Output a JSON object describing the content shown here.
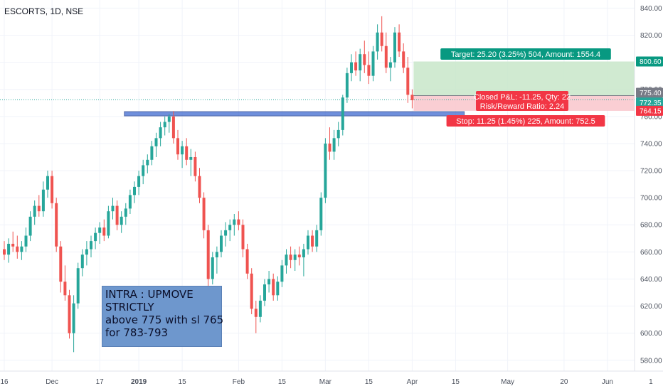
{
  "header": {
    "symbol_title": "ESCORTS, 1D, NSE"
  },
  "annotation": {
    "lines": [
      "INTRA : UPMOVE",
      "STRICTLY",
      "above 775 with sl 765",
      "for 783-793"
    ]
  },
  "position_tool": {
    "target_label": "Target: 25.20 (3.25%) 504, Amount: 1554.4",
    "closed_pnl_label": "Closed P&L: -11.25, Qty: 22",
    "risk_reward_label": "Risk/Reward Ratio: 2.24",
    "stop_label": "Stop: 11.25 (1.45%) 225, Amount: 752.5",
    "target_price": 800.6,
    "entry_price": 775.4,
    "stop_price": 764.15,
    "colors": {
      "target_zone": "#c8e6c9",
      "stop_zone": "#f9c9ce",
      "target_badge": "#089981",
      "stop_badge": "#f23645"
    }
  },
  "price_badges": [
    {
      "label": "800.60",
      "bg": "#089981",
      "fg": "#ffffff"
    },
    {
      "label": "775.40",
      "bg": "#787b86",
      "fg": "#ffffff"
    },
    {
      "label": "772.35",
      "bg": "#26a69a",
      "fg": "#ffffff"
    },
    {
      "label": "764.15",
      "bg": "#f23645",
      "fg": "#ffffff"
    }
  ],
  "chart_data": {
    "type": "candlestick",
    "title": "ESCORTS, 1D, NSE",
    "xlabel": "",
    "ylabel": "",
    "ylim": [
      572,
      846
    ],
    "y_ticks": [
      580,
      600,
      620,
      640,
      660,
      680,
      700,
      720,
      740,
      760,
      780,
      800,
      820,
      840
    ],
    "x_ticks": [
      {
        "label": "16",
        "bar": 0
      },
      {
        "label": "Dec",
        "bar": 11
      },
      {
        "label": "17",
        "bar": 22
      },
      {
        "label": "2019",
        "bar": 31
      },
      {
        "label": "15",
        "bar": 41
      },
      {
        "label": "Feb",
        "bar": 54
      },
      {
        "label": "15",
        "bar": 64
      },
      {
        "label": "Mar",
        "bar": 74
      },
      {
        "label": "15",
        "bar": 84
      },
      {
        "label": "Apr",
        "bar": 94
      },
      {
        "label": "15",
        "bar": 104
      },
      {
        "label": "May",
        "bar": 116
      },
      {
        "label": "20",
        "bar": 129
      },
      {
        "label": "Jun",
        "bar": 139
      },
      {
        "label": "1",
        "bar": 149
      }
    ],
    "colors": {
      "up": "#26a69a",
      "down": "#ef5350"
    },
    "horizontal_levels": [
      {
        "value": 772.35,
        "style": "dotted",
        "color": "#26a69a"
      },
      {
        "value": 762,
        "style": "band",
        "color": "#3f6ad1",
        "from_bar": 28,
        "to_bar": 106
      }
    ],
    "candles": [
      {
        "o": 662,
        "h": 668,
        "l": 654,
        "c": 658
      },
      {
        "o": 658,
        "h": 670,
        "l": 652,
        "c": 666
      },
      {
        "o": 666,
        "h": 675,
        "l": 660,
        "c": 664
      },
      {
        "o": 664,
        "h": 672,
        "l": 655,
        "c": 660
      },
      {
        "o": 660,
        "h": 668,
        "l": 654,
        "c": 664
      },
      {
        "o": 664,
        "h": 678,
        "l": 660,
        "c": 672
      },
      {
        "o": 672,
        "h": 690,
        "l": 668,
        "c": 686
      },
      {
        "o": 686,
        "h": 698,
        "l": 680,
        "c": 694
      },
      {
        "o": 694,
        "h": 702,
        "l": 686,
        "c": 690
      },
      {
        "o": 690,
        "h": 712,
        "l": 686,
        "c": 706
      },
      {
        "o": 706,
        "h": 720,
        "l": 700,
        "c": 716
      },
      {
        "o": 716,
        "h": 720,
        "l": 692,
        "c": 696
      },
      {
        "o": 696,
        "h": 700,
        "l": 660,
        "c": 664
      },
      {
        "o": 664,
        "h": 668,
        "l": 630,
        "c": 638
      },
      {
        "o": 638,
        "h": 650,
        "l": 624,
        "c": 628
      },
      {
        "o": 628,
        "h": 632,
        "l": 596,
        "c": 600
      },
      {
        "o": 600,
        "h": 628,
        "l": 586,
        "c": 622
      },
      {
        "o": 622,
        "h": 652,
        "l": 618,
        "c": 648
      },
      {
        "o": 648,
        "h": 662,
        "l": 642,
        "c": 658
      },
      {
        "o": 658,
        "h": 668,
        "l": 650,
        "c": 662
      },
      {
        "o": 662,
        "h": 672,
        "l": 656,
        "c": 668
      },
      {
        "o": 668,
        "h": 678,
        "l": 662,
        "c": 674
      },
      {
        "o": 674,
        "h": 682,
        "l": 666,
        "c": 678
      },
      {
        "o": 678,
        "h": 684,
        "l": 668,
        "c": 672
      },
      {
        "o": 672,
        "h": 694,
        "l": 670,
        "c": 690
      },
      {
        "o": 690,
        "h": 700,
        "l": 684,
        "c": 694
      },
      {
        "o": 694,
        "h": 698,
        "l": 676,
        "c": 680
      },
      {
        "o": 680,
        "h": 690,
        "l": 674,
        "c": 686
      },
      {
        "o": 686,
        "h": 696,
        "l": 680,
        "c": 692
      },
      {
        "o": 692,
        "h": 706,
        "l": 688,
        "c": 702
      },
      {
        "o": 702,
        "h": 712,
        "l": 696,
        "c": 708
      },
      {
        "o": 708,
        "h": 720,
        "l": 702,
        "c": 716
      },
      {
        "o": 716,
        "h": 728,
        "l": 710,
        "c": 724
      },
      {
        "o": 724,
        "h": 732,
        "l": 718,
        "c": 728
      },
      {
        "o": 728,
        "h": 742,
        "l": 724,
        "c": 738
      },
      {
        "o": 738,
        "h": 748,
        "l": 730,
        "c": 744
      },
      {
        "o": 744,
        "h": 756,
        "l": 738,
        "c": 752
      },
      {
        "o": 752,
        "h": 760,
        "l": 746,
        "c": 756
      },
      {
        "o": 756,
        "h": 762,
        "l": 748,
        "c": 760
      },
      {
        "o": 760,
        "h": 764,
        "l": 740,
        "c": 744
      },
      {
        "o": 744,
        "h": 750,
        "l": 728,
        "c": 732
      },
      {
        "o": 732,
        "h": 742,
        "l": 722,
        "c": 738
      },
      {
        "o": 738,
        "h": 744,
        "l": 724,
        "c": 728
      },
      {
        "o": 728,
        "h": 736,
        "l": 716,
        "c": 730
      },
      {
        "o": 730,
        "h": 734,
        "l": 712,
        "c": 716
      },
      {
        "o": 716,
        "h": 722,
        "l": 696,
        "c": 700
      },
      {
        "o": 700,
        "h": 704,
        "l": 670,
        "c": 676
      },
      {
        "o": 676,
        "h": 680,
        "l": 634,
        "c": 640
      },
      {
        "o": 640,
        "h": 660,
        "l": 636,
        "c": 656
      },
      {
        "o": 656,
        "h": 664,
        "l": 644,
        "c": 660
      },
      {
        "o": 660,
        "h": 676,
        "l": 656,
        "c": 672
      },
      {
        "o": 672,
        "h": 682,
        "l": 664,
        "c": 676
      },
      {
        "o": 676,
        "h": 684,
        "l": 668,
        "c": 680
      },
      {
        "o": 680,
        "h": 688,
        "l": 672,
        "c": 684
      },
      {
        "o": 684,
        "h": 690,
        "l": 676,
        "c": 680
      },
      {
        "o": 680,
        "h": 684,
        "l": 656,
        "c": 662
      },
      {
        "o": 662,
        "h": 666,
        "l": 640,
        "c": 644
      },
      {
        "o": 644,
        "h": 648,
        "l": 614,
        "c": 618
      },
      {
        "o": 618,
        "h": 624,
        "l": 600,
        "c": 612
      },
      {
        "o": 612,
        "h": 628,
        "l": 608,
        "c": 624
      },
      {
        "o": 624,
        "h": 640,
        "l": 620,
        "c": 636
      },
      {
        "o": 636,
        "h": 646,
        "l": 630,
        "c": 640
      },
      {
        "o": 640,
        "h": 644,
        "l": 624,
        "c": 628
      },
      {
        "o": 628,
        "h": 642,
        "l": 624,
        "c": 638
      },
      {
        "o": 638,
        "h": 654,
        "l": 634,
        "c": 650
      },
      {
        "o": 650,
        "h": 662,
        "l": 644,
        "c": 658
      },
      {
        "o": 658,
        "h": 664,
        "l": 648,
        "c": 654
      },
      {
        "o": 654,
        "h": 662,
        "l": 646,
        "c": 658
      },
      {
        "o": 658,
        "h": 664,
        "l": 650,
        "c": 656
      },
      {
        "o": 656,
        "h": 666,
        "l": 642,
        "c": 662
      },
      {
        "o": 662,
        "h": 676,
        "l": 658,
        "c": 672
      },
      {
        "o": 672,
        "h": 676,
        "l": 660,
        "c": 664
      },
      {
        "o": 664,
        "h": 680,
        "l": 660,
        "c": 676
      },
      {
        "o": 676,
        "h": 704,
        "l": 672,
        "c": 700
      },
      {
        "o": 700,
        "h": 744,
        "l": 696,
        "c": 740
      },
      {
        "o": 740,
        "h": 752,
        "l": 728,
        "c": 734
      },
      {
        "o": 734,
        "h": 750,
        "l": 728,
        "c": 744
      },
      {
        "o": 744,
        "h": 756,
        "l": 738,
        "c": 750
      },
      {
        "o": 750,
        "h": 776,
        "l": 746,
        "c": 774
      },
      {
        "o": 774,
        "h": 796,
        "l": 770,
        "c": 792
      },
      {
        "o": 792,
        "h": 806,
        "l": 786,
        "c": 800
      },
      {
        "o": 800,
        "h": 808,
        "l": 790,
        "c": 794
      },
      {
        "o": 794,
        "h": 810,
        "l": 786,
        "c": 806
      },
      {
        "o": 806,
        "h": 816,
        "l": 792,
        "c": 798
      },
      {
        "o": 798,
        "h": 808,
        "l": 784,
        "c": 790
      },
      {
        "o": 790,
        "h": 812,
        "l": 786,
        "c": 808
      },
      {
        "o": 808,
        "h": 828,
        "l": 802,
        "c": 822
      },
      {
        "o": 822,
        "h": 834,
        "l": 808,
        "c": 812
      },
      {
        "o": 812,
        "h": 822,
        "l": 792,
        "c": 796
      },
      {
        "o": 796,
        "h": 804,
        "l": 786,
        "c": 800
      },
      {
        "o": 800,
        "h": 826,
        "l": 796,
        "c": 822
      },
      {
        "o": 822,
        "h": 828,
        "l": 804,
        "c": 808
      },
      {
        "o": 808,
        "h": 814,
        "l": 792,
        "c": 796
      },
      {
        "o": 796,
        "h": 804,
        "l": 770,
        "c": 776
      },
      {
        "o": 776,
        "h": 780,
        "l": 766,
        "c": 772
      }
    ]
  }
}
